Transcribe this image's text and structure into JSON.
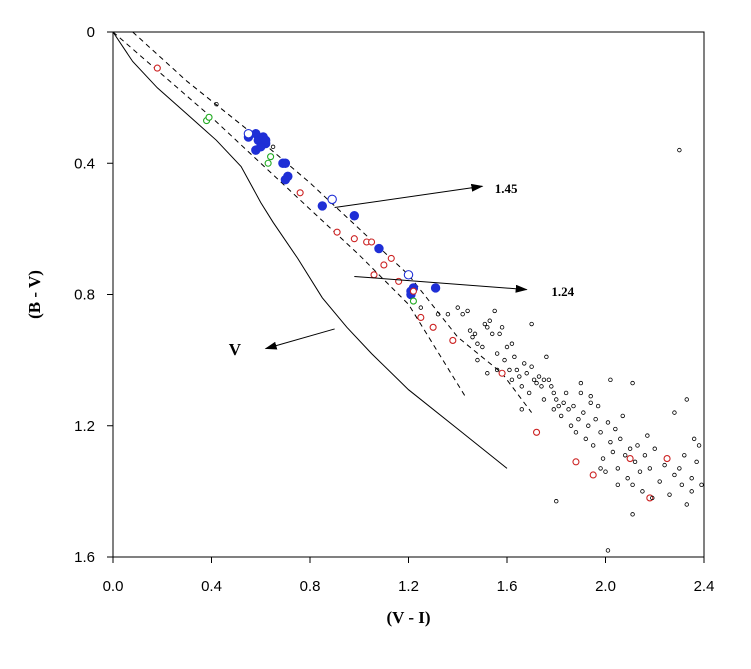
{
  "chart_data": {
    "type": "scatter",
    "xlabel": "(V - I)",
    "ylabel": "(B - V)",
    "xlim": [
      0.0,
      2.4
    ],
    "ylim": [
      0.0,
      1.6
    ],
    "y_inverted": true,
    "xticks": [
      "0.0",
      "0.4",
      "0.8",
      "1.2",
      "1.6",
      "2.0",
      "2.4"
    ],
    "yticks": [
      "0",
      "0.4",
      "0.8",
      "1.2",
      "1.6"
    ],
    "grid": false,
    "series": [
      {
        "marker": "filled-circle",
        "color": "#1f2fd6",
        "points": [
          [
            0.55,
            0.32
          ],
          [
            0.58,
            0.31
          ],
          [
            0.59,
            0.33
          ],
          [
            0.61,
            0.32
          ],
          [
            0.62,
            0.34
          ],
          [
            0.58,
            0.36
          ],
          [
            0.6,
            0.35
          ],
          [
            0.62,
            0.33
          ],
          [
            0.69,
            0.4
          ],
          [
            0.7,
            0.4
          ],
          [
            0.71,
            0.44
          ],
          [
            0.7,
            0.45
          ],
          [
            0.85,
            0.53
          ],
          [
            0.98,
            0.56
          ],
          [
            1.08,
            0.66
          ],
          [
            1.21,
            0.79
          ],
          [
            1.21,
            0.8
          ],
          [
            1.22,
            0.78
          ],
          [
            1.31,
            0.78
          ]
        ]
      },
      {
        "marker": "open-circle",
        "color": "#1f2fd6",
        "points": [
          [
            0.55,
            0.31
          ],
          [
            0.89,
            0.51
          ],
          [
            1.2,
            0.74
          ]
        ]
      },
      {
        "marker": "open-circle",
        "color": "#cc2222",
        "points": [
          [
            0.18,
            0.11
          ],
          [
            0.76,
            0.49
          ],
          [
            0.91,
            0.61
          ],
          [
            0.98,
            0.63
          ],
          [
            1.03,
            0.64
          ],
          [
            1.05,
            0.64
          ],
          [
            1.06,
            0.74
          ],
          [
            1.1,
            0.71
          ],
          [
            1.13,
            0.69
          ],
          [
            1.16,
            0.76
          ],
          [
            1.22,
            0.79
          ],
          [
            1.25,
            0.87
          ],
          [
            1.3,
            0.9
          ],
          [
            1.38,
            0.94
          ],
          [
            1.58,
            1.04
          ],
          [
            1.72,
            1.22
          ],
          [
            1.88,
            1.31
          ],
          [
            1.95,
            1.35
          ],
          [
            2.1,
            1.3
          ],
          [
            2.18,
            1.42
          ],
          [
            2.25,
            1.3
          ]
        ]
      },
      {
        "marker": "open-circle",
        "color": "#22aa22",
        "points": [
          [
            0.38,
            0.27
          ],
          [
            0.39,
            0.26
          ],
          [
            0.63,
            0.4
          ],
          [
            0.64,
            0.38
          ],
          [
            1.22,
            0.82
          ]
        ]
      },
      {
        "marker": "small-open-circle",
        "color": "#000000",
        "points": [
          [
            0.42,
            0.22
          ],
          [
            0.65,
            0.35
          ],
          [
            2.3,
            0.36
          ],
          [
            1.25,
            0.84
          ],
          [
            1.32,
            0.86
          ],
          [
            1.36,
            0.86
          ],
          [
            1.4,
            0.84
          ],
          [
            1.42,
            0.86
          ],
          [
            1.44,
            0.85
          ],
          [
            1.45,
            0.91
          ],
          [
            1.46,
            0.93
          ],
          [
            1.47,
            0.92
          ],
          [
            1.48,
            0.95
          ],
          [
            1.5,
            0.96
          ],
          [
            1.51,
            0.89
          ],
          [
            1.52,
            0.9
          ],
          [
            1.53,
            0.88
          ],
          [
            1.54,
            0.92
          ],
          [
            1.55,
            0.85
          ],
          [
            1.56,
            0.98
          ],
          [
            1.57,
            0.92
          ],
          [
            1.58,
            0.9
          ],
          [
            1.59,
            1.0
          ],
          [
            1.6,
            0.96
          ],
          [
            1.61,
            1.03
          ],
          [
            1.62,
            1.06
          ],
          [
            1.63,
            0.99
          ],
          [
            1.64,
            1.03
          ],
          [
            1.65,
            1.05
          ],
          [
            1.66,
            1.08
          ],
          [
            1.67,
            1.01
          ],
          [
            1.68,
            1.04
          ],
          [
            1.69,
            1.1
          ],
          [
            1.7,
            1.02
          ],
          [
            1.71,
            1.06
          ],
          [
            1.72,
            1.07
          ],
          [
            1.73,
            1.05
          ],
          [
            1.74,
            1.08
          ],
          [
            1.75,
            1.12
          ],
          [
            1.76,
            0.99
          ],
          [
            1.77,
            1.06
          ],
          [
            1.78,
            1.08
          ],
          [
            1.79,
            1.1
          ],
          [
            1.8,
            1.12
          ],
          [
            1.81,
            1.14
          ],
          [
            1.82,
            1.17
          ],
          [
            1.83,
            1.13
          ],
          [
            1.84,
            1.1
          ],
          [
            1.85,
            1.15
          ],
          [
            1.86,
            1.2
          ],
          [
            1.87,
            1.14
          ],
          [
            1.88,
            1.22
          ],
          [
            1.89,
            1.18
          ],
          [
            1.9,
            1.1
          ],
          [
            1.91,
            1.16
          ],
          [
            1.92,
            1.24
          ],
          [
            1.93,
            1.2
          ],
          [
            1.94,
            1.13
          ],
          [
            1.95,
            1.26
          ],
          [
            1.96,
            1.18
          ],
          [
            1.97,
            1.14
          ],
          [
            1.98,
            1.22
          ],
          [
            1.99,
            1.3
          ],
          [
            2.0,
            1.34
          ],
          [
            2.01,
            1.19
          ],
          [
            2.02,
            1.25
          ],
          [
            2.03,
            1.28
          ],
          [
            2.04,
            1.21
          ],
          [
            2.05,
            1.33
          ],
          [
            2.06,
            1.24
          ],
          [
            2.07,
            1.17
          ],
          [
            2.08,
            1.29
          ],
          [
            2.09,
            1.36
          ],
          [
            2.1,
            1.27
          ],
          [
            2.11,
            1.38
          ],
          [
            2.12,
            1.31
          ],
          [
            2.13,
            1.26
          ],
          [
            2.14,
            1.34
          ],
          [
            2.15,
            1.4
          ],
          [
            2.16,
            1.29
          ],
          [
            2.17,
            1.23
          ],
          [
            2.18,
            1.33
          ],
          [
            2.2,
            1.27
          ],
          [
            2.22,
            1.37
          ],
          [
            2.24,
            1.32
          ],
          [
            2.26,
            1.41
          ],
          [
            2.28,
            1.35
          ],
          [
            2.3,
            1.33
          ],
          [
            2.31,
            1.38
          ],
          [
            2.32,
            1.29
          ],
          [
            2.33,
            1.44
          ],
          [
            2.35,
            1.36
          ],
          [
            2.36,
            1.24
          ],
          [
            2.37,
            1.31
          ],
          [
            2.38,
            1.26
          ],
          [
            2.39,
            1.38
          ],
          [
            1.8,
            1.43
          ],
          [
            2.01,
            1.58
          ],
          [
            2.11,
            1.47
          ],
          [
            2.19,
            1.42
          ],
          [
            2.33,
            1.12
          ],
          [
            1.9,
            1.07
          ],
          [
            1.94,
            1.11
          ],
          [
            2.02,
            1.06
          ],
          [
            2.11,
            1.07
          ],
          [
            1.7,
            0.89
          ],
          [
            1.62,
            0.95
          ],
          [
            1.48,
            1.0
          ],
          [
            1.52,
            1.04
          ],
          [
            1.56,
            1.03
          ],
          [
            1.66,
            1.15
          ],
          [
            1.75,
            1.06
          ],
          [
            1.79,
            1.15
          ],
          [
            1.98,
            1.33
          ],
          [
            2.05,
            1.38
          ],
          [
            2.28,
            1.16
          ],
          [
            2.35,
            1.4
          ]
        ]
      }
    ],
    "lines": [
      {
        "name": "solid",
        "style": "solid",
        "points": [
          [
            0.0,
            0.0
          ],
          [
            0.08,
            0.09
          ],
          [
            0.18,
            0.17
          ],
          [
            0.3,
            0.25
          ],
          [
            0.42,
            0.33
          ],
          [
            0.52,
            0.41
          ],
          [
            0.6,
            0.52
          ],
          [
            0.65,
            0.58
          ],
          [
            0.75,
            0.69
          ],
          [
            0.85,
            0.81
          ],
          [
            0.95,
            0.9
          ],
          [
            1.05,
            0.98
          ],
          [
            1.2,
            1.09
          ],
          [
            1.4,
            1.21
          ],
          [
            1.6,
            1.33
          ]
        ]
      },
      {
        "name": "dashed-lower",
        "style": "dashed",
        "points": [
          [
            0.0,
            0.0
          ],
          [
            0.2,
            0.13
          ],
          [
            0.4,
            0.26
          ],
          [
            0.6,
            0.4
          ],
          [
            0.8,
            0.54
          ],
          [
            1.0,
            0.68
          ],
          [
            1.2,
            0.83
          ],
          [
            1.43,
            1.11
          ]
        ]
      },
      {
        "name": "dashed-upper",
        "style": "dashed",
        "points": [
          [
            0.08,
            0.0
          ],
          [
            0.3,
            0.15
          ],
          [
            0.55,
            0.3
          ],
          [
            0.8,
            0.46
          ],
          [
            1.0,
            0.6
          ],
          [
            1.2,
            0.74
          ],
          [
            1.4,
            0.93
          ],
          [
            1.58,
            1.04
          ],
          [
            1.7,
            1.16
          ]
        ]
      }
    ],
    "annotations": [
      {
        "text": "1.45",
        "arrow_from": [
          0.9,
          0.535
        ],
        "arrow_to": [
          1.5,
          0.47
        ],
        "label_at": [
          1.55,
          0.49
        ]
      },
      {
        "text": "1.24",
        "arrow_from": [
          0.98,
          0.745
        ],
        "arrow_to": [
          1.68,
          0.785
        ],
        "label_at": [
          1.78,
          0.805
        ]
      },
      {
        "text": "V",
        "arrow_from": [
          0.9,
          0.905
        ],
        "arrow_to": [
          0.62,
          0.965
        ],
        "label_at": [
          0.47,
          0.985
        ]
      }
    ]
  }
}
